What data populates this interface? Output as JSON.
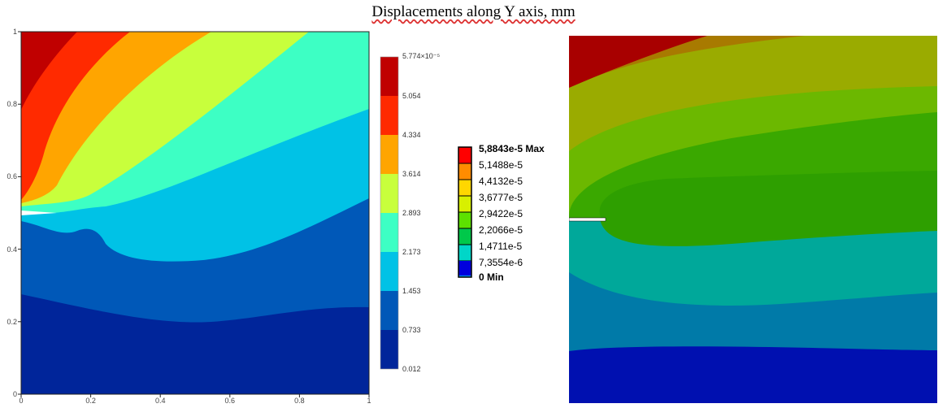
{
  "title": "Displacements along Y axis, mm",
  "chart_data": [
    {
      "type": "heatmap",
      "subtype": "filled-contour",
      "xlim": [
        0,
        1
      ],
      "ylim": [
        0,
        1
      ],
      "x_ticks": [
        "0",
        "0.2",
        "0.4",
        "0.6",
        "0.8",
        "1"
      ],
      "y_ticks": [
        "0",
        "0.2",
        "0.4",
        "0.6",
        "0.8",
        "1"
      ],
      "colorbar": {
        "labels": [
          "5.774×10⁻⁵",
          "5.054",
          "4.334",
          "3.614",
          "2.893",
          "2.173",
          "1.453",
          "0.733",
          "0.012"
        ],
        "colors": [
          "#c00000",
          "#ff2a00",
          "#ffa500",
          "#c8ff3c",
          "#3dffc4",
          "#00c2e6",
          "#0058b8",
          "#00259a"
        ]
      },
      "legend": "right"
    },
    {
      "type": "heatmap",
      "subtype": "filled-contour",
      "legend": "left",
      "legend_entries": [
        "5,8843e-5 Max",
        "5,1488e-5",
        "4,4132e-5",
        "3,6777e-5",
        "2,9422e-5",
        "2,2066e-5",
        "1,4711e-5",
        "7,3554e-6",
        "0 Min"
      ],
      "legend_colors": [
        "#ff0000",
        "#ff8c00",
        "#ffd700",
        "#d8f000",
        "#5de100",
        "#00c84a",
        "#00d6c8",
        "#0099ee",
        "#0000dd"
      ],
      "field_colors": [
        "#a80000",
        "#a87a00",
        "#9aab00",
        "#6cb800",
        "#3aa800",
        "#2e9f00",
        "#00a89a",
        "#007aa8",
        "#0010b0"
      ]
    }
  ]
}
